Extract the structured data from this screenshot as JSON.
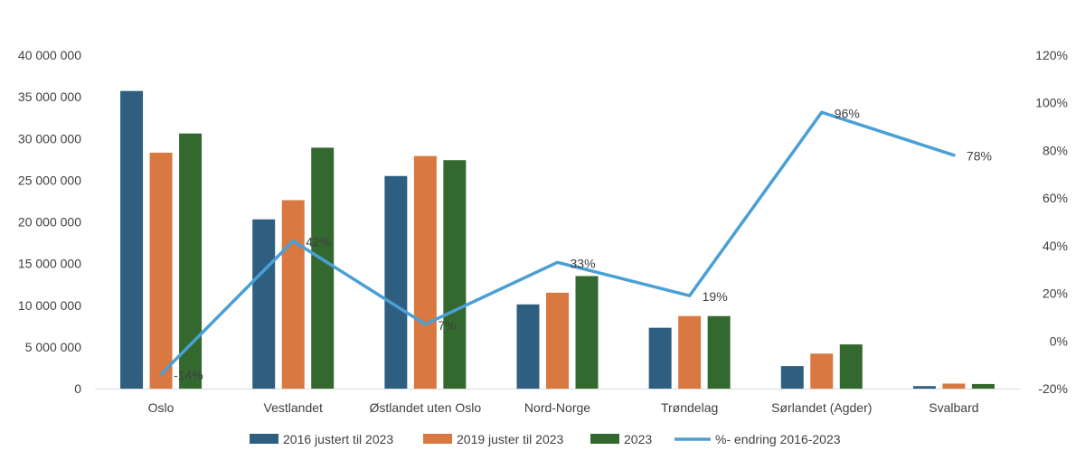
{
  "chart_data": {
    "type": "bar",
    "categories": [
      "Oslo",
      "Vestlandet",
      "Østlandet uten Oslo",
      "Nord-Norge",
      "Trøndelag",
      "Sørlandet (Agder)",
      "Svalbard"
    ],
    "series": [
      {
        "name": "2016 justert til 2023",
        "type": "bar",
        "axis": "left",
        "color": "#2E5F80",
        "values": [
          35700000,
          20300000,
          25500000,
          10100000,
          7300000,
          2700000,
          300000
        ]
      },
      {
        "name": "2019 juster til 2023",
        "type": "bar",
        "axis": "left",
        "color": "#D97840",
        "values": [
          28300000,
          22600000,
          27900000,
          11500000,
          8700000,
          4200000,
          600000
        ]
      },
      {
        "name": "2023",
        "type": "bar",
        "axis": "left",
        "color": "#33692E",
        "values": [
          30600000,
          28900000,
          27400000,
          13500000,
          8700000,
          5300000,
          550000
        ]
      },
      {
        "name": "%- endring 2016-2023",
        "type": "line",
        "axis": "right",
        "color": "#4A9FD5",
        "values": [
          -14,
          42,
          7,
          33,
          19,
          96,
          78
        ],
        "labels": [
          "-14%",
          "42%",
          "7%",
          "33%",
          "19%",
          "96%",
          "78%"
        ]
      }
    ],
    "y_left": {
      "min": 0,
      "max": 40000000,
      "ticks": [
        0,
        5000000,
        10000000,
        15000000,
        20000000,
        25000000,
        30000000,
        35000000,
        40000000
      ],
      "tick_labels": [
        "0",
        "5 000 000",
        "10 000 000",
        "15 000 000",
        "20 000 000",
        "25 000 000",
        "30 000 000",
        "35 000 000",
        "40 000 000"
      ]
    },
    "y_right": {
      "min": -20,
      "max": 120,
      "ticks": [
        -20,
        0,
        20,
        40,
        60,
        80,
        100,
        120
      ],
      "tick_labels": [
        "-20%",
        "0%",
        "20%",
        "40%",
        "60%",
        "80%",
        "100%",
        "120%"
      ]
    },
    "title": "",
    "grid": false,
    "legend_position": "bottom"
  }
}
